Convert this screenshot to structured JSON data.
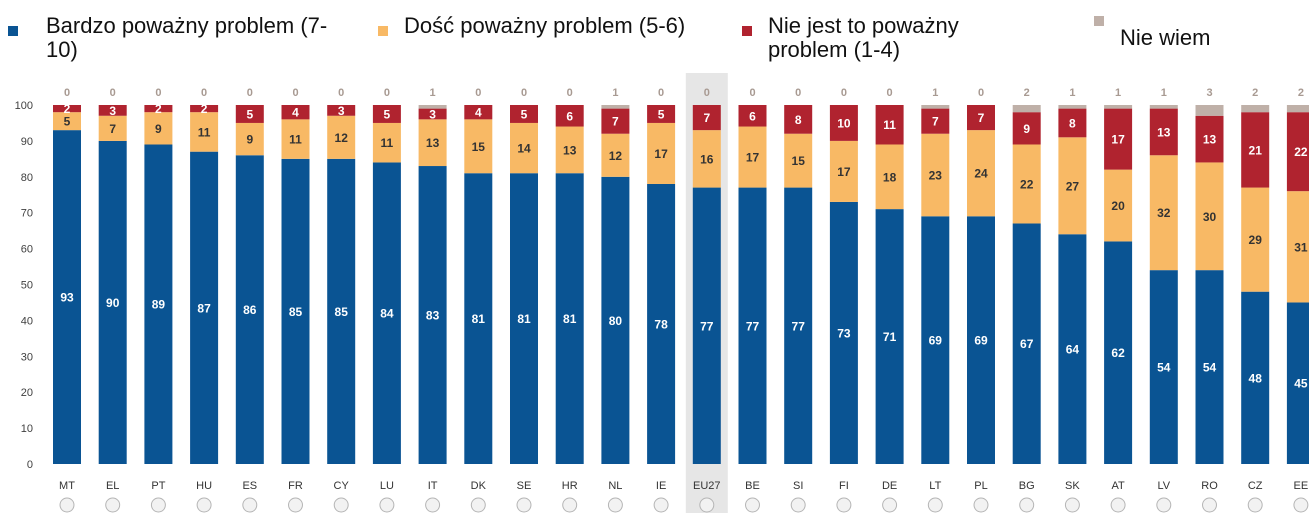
{
  "legend": [
    {
      "label": "Bardzo poważny problem (7-10)",
      "color": "#0a5493"
    },
    {
      "label": "Dość poważny problem (5-6)",
      "color": "#f8b965"
    },
    {
      "label": "Nie jest to poważny problem (1-4)",
      "color": "#b0232f"
    },
    {
      "label": "Nie wiem",
      "color": "#bfb0a8"
    }
  ],
  "chart_data": {
    "type": "bar",
    "stacked": true,
    "highlighted_category": "EU27",
    "categories": [
      "MT",
      "EL",
      "PT",
      "HU",
      "ES",
      "FR",
      "CY",
      "LU",
      "IT",
      "DK",
      "SE",
      "HR",
      "NL",
      "IE",
      "EU27",
      "BE",
      "SI",
      "FI",
      "DE",
      "LT",
      "PL",
      "BG",
      "SK",
      "AT",
      "LV",
      "RO",
      "CZ",
      "EE"
    ],
    "series": [
      {
        "name": "Bardzo poważny problem (7-10)",
        "color": "#0a5493",
        "values": [
          93,
          90,
          89,
          87,
          86,
          85,
          85,
          84,
          83,
          81,
          81,
          81,
          80,
          78,
          77,
          77,
          77,
          73,
          71,
          69,
          69,
          67,
          64,
          62,
          54,
          54,
          48,
          45
        ]
      },
      {
        "name": "Dość poważny problem (5-6)",
        "color": "#f8b965",
        "values": [
          5,
          7,
          9,
          11,
          9,
          11,
          12,
          11,
          13,
          15,
          14,
          13,
          12,
          17,
          16,
          17,
          15,
          17,
          18,
          23,
          24,
          22,
          27,
          20,
          32,
          30,
          29,
          31
        ]
      },
      {
        "name": "Nie jest to poważny problem (1-4)",
        "color": "#b0232f",
        "values": [
          2,
          3,
          2,
          2,
          5,
          4,
          3,
          5,
          3,
          4,
          5,
          6,
          7,
          5,
          7,
          6,
          8,
          10,
          11,
          7,
          7,
          9,
          8,
          17,
          13,
          13,
          21,
          22
        ]
      },
      {
        "name": "Nie wiem",
        "color": "#bfb0a8",
        "values": [
          0,
          0,
          0,
          0,
          0,
          0,
          0,
          0,
          1,
          0,
          0,
          0,
          1,
          0,
          0,
          0,
          0,
          0,
          0,
          1,
          0,
          2,
          1,
          1,
          1,
          3,
          2,
          2
        ]
      }
    ],
    "ylim": [
      0,
      100
    ],
    "yticks": [
      0,
      10,
      20,
      30,
      40,
      50,
      60,
      70,
      80,
      90,
      100
    ],
    "grid": false,
    "legend_position": "top"
  }
}
